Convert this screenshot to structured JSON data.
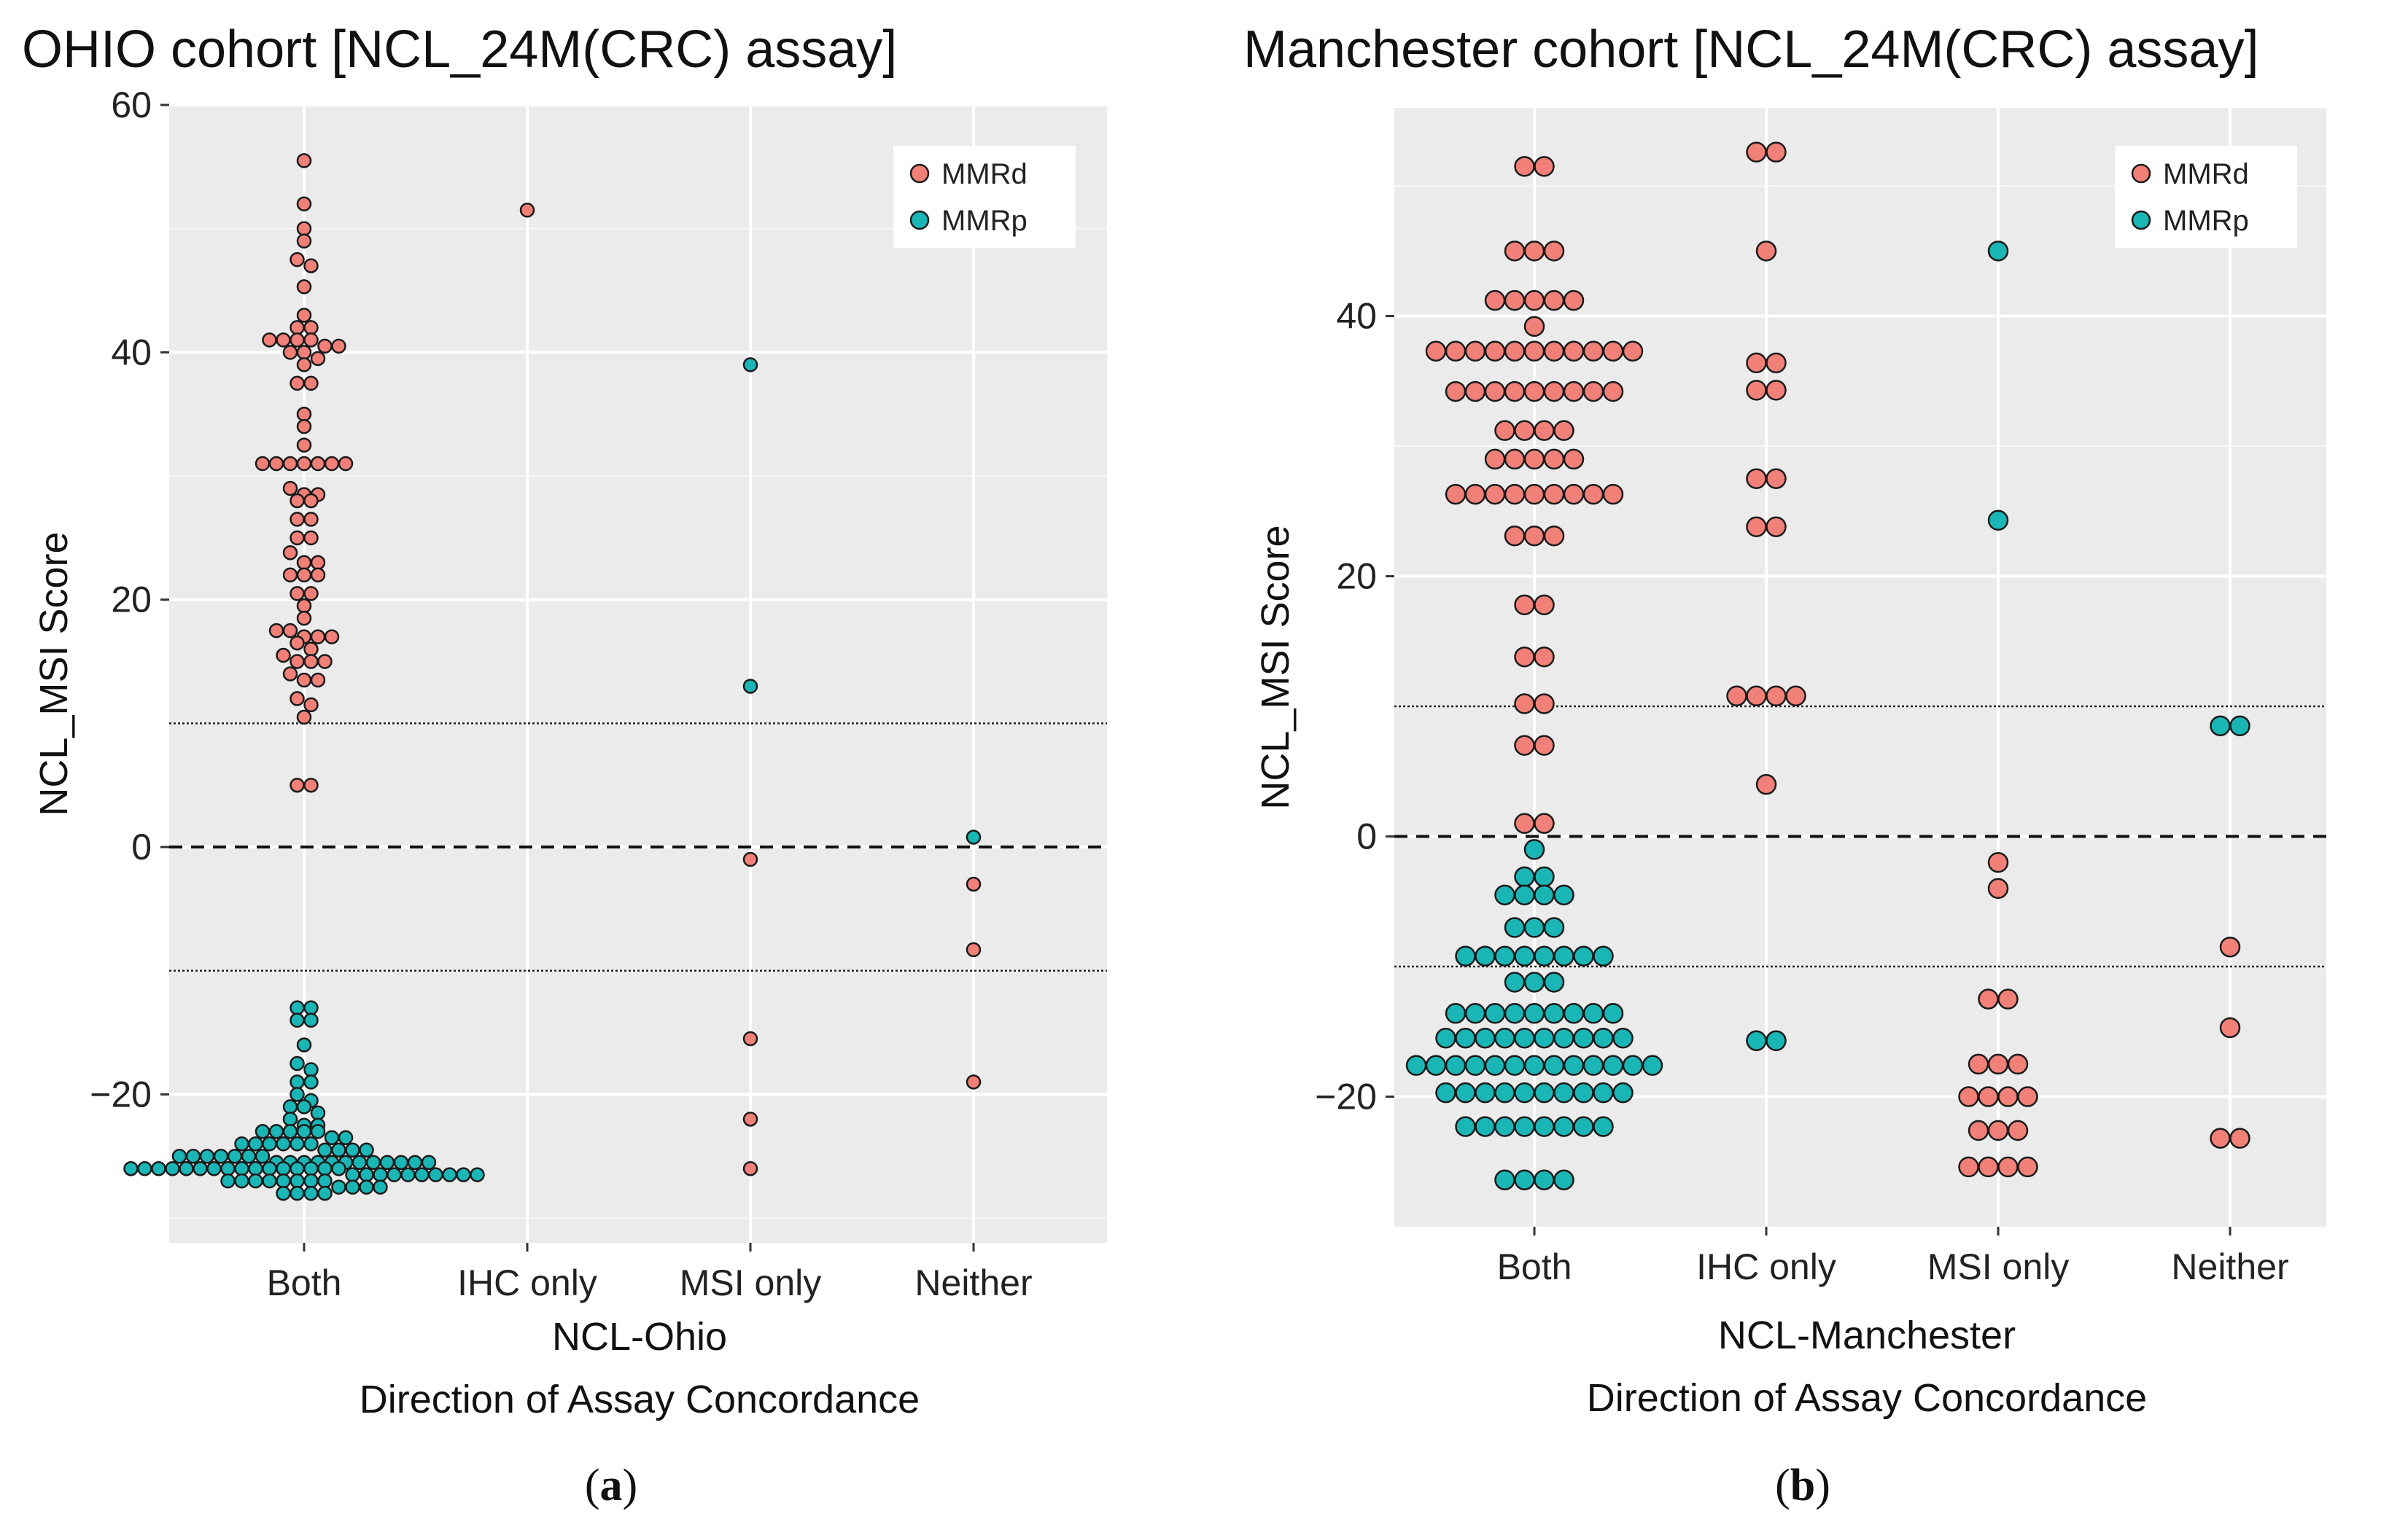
{
  "panels": [
    {
      "title": "OHIO cohort [NCL_24M(CRC) assay]",
      "caption_letter": "a",
      "chart_data": {
        "type": "scatter",
        "title": "OHIO cohort [NCL_24M(CRC) assay]",
        "xlabel": [
          "NCL-Ohio",
          "Direction of Assay Concordance"
        ],
        "ylabel": "NCL_MSI Score",
        "categories": [
          "Both",
          "IHC only",
          "MSI only",
          "Neither"
        ],
        "ylim": [
          -32,
          60
        ],
        "yticks": [
          -20,
          0,
          20,
          40,
          60
        ],
        "reference_lines": {
          "dashed": 0,
          "dotted": [
            10,
            -10
          ]
        },
        "legend": {
          "position": "top-right",
          "entries": [
            "MMRd",
            "MMRp"
          ]
        },
        "colors": {
          "MMRd": "#f08078",
          "MMRp": "#1ab5b5"
        },
        "grid": true,
        "series": [
          {
            "name": "MMRd",
            "points": {
              "Both": [
                55.5,
                52,
                50,
                49,
                47.5,
                47,
                45.3,
                43,
                42,
                42,
                41,
                41,
                41,
                41,
                40.5,
                40.5,
                40,
                40,
                39.5,
                39,
                37.5,
                37.5,
                35,
                34,
                32.5,
                31,
                31,
                31,
                31,
                31,
                31,
                31,
                29,
                28.5,
                28.5,
                28,
                28,
                26.5,
                26.5,
                25,
                25,
                23.8,
                23,
                23,
                22,
                22,
                22,
                20.5,
                20.5,
                19.5,
                18.5,
                17.5,
                17.5,
                17,
                17,
                17,
                16.5,
                16,
                15.5,
                15,
                15,
                15,
                14,
                13.5,
                13.5,
                12,
                11.5,
                10.5,
                5,
                5
              ],
              "IHC only": [
                51.5
              ],
              "MSI only": [
                -1,
                -15.5,
                -22,
                -26
              ],
              "Neither": [
                -3,
                -8.3,
                -19
              ]
            }
          },
          {
            "name": "MMRp",
            "points": {
              "Both": [
                -13,
                -13,
                -14,
                -14,
                -16,
                -17.5,
                -18,
                -19,
                -19,
                -20,
                -20.5,
                -21,
                -21,
                -21.5,
                -22,
                -22.5,
                -22.5,
                -23,
                -23,
                -23,
                -23,
                -23,
                -23.5,
                -23.5,
                -24,
                -24,
                -24,
                -24,
                -24,
                -24,
                -24.5,
                -24.5,
                -24.5,
                -24.5,
                -25,
                -25,
                -25,
                -25,
                -25,
                -25,
                -25,
                -25.5,
                -25.5,
                -25.5,
                -25.5,
                -25.5,
                -25.5,
                -25.5,
                -25.5,
                -25.5,
                -25.5,
                -25.5,
                -25.5,
                -26,
                -26,
                -26,
                -26,
                -26,
                -26,
                -26,
                -26,
                -26,
                -26,
                -26,
                -26,
                -26,
                -26,
                -26,
                -26,
                -26.5,
                -26.5,
                -26.5,
                -26.5,
                -26.5,
                -26.5,
                -26.5,
                -26.5,
                -26.5,
                -26.5,
                -27,
                -27,
                -27,
                -27,
                -27,
                -27,
                -27,
                -27,
                -27.5,
                -27.5,
                -27.5,
                -27.5,
                -28,
                -28,
                -28,
                -28
              ],
              "IHC only": [],
              "MSI only": [
                39,
                13
              ],
              "Neither": [
                0.8
              ]
            }
          }
        ]
      }
    },
    {
      "title": "Manchester cohort [NCL_24M(CRC) assay]",
      "caption_letter": "b",
      "chart_data": {
        "type": "scatter",
        "title": "Manchester cohort [NCL_24M(CRC) assay]",
        "xlabel": [
          "NCL-Manchester",
          "Direction of Assay Concordance"
        ],
        "ylabel": "NCL_MSI Score",
        "categories": [
          "Both",
          "IHC only",
          "MSI only",
          "Neither"
        ],
        "ylim": [
          -30,
          56
        ],
        "yticks": [
          -20,
          0,
          20,
          40
        ],
        "reference_lines": {
          "dashed": 0,
          "dotted": [
            10,
            -10
          ]
        },
        "legend": {
          "position": "top-right",
          "entries": [
            "MMRd",
            "MMRp"
          ]
        },
        "colors": {
          "MMRd": "#f08078",
          "MMRp": "#1ab5b5"
        },
        "grid": true,
        "series": [
          {
            "name": "MMRd",
            "points": {
              "Both": [
                51.5,
                51.5,
                45,
                45,
                45,
                41.2,
                41.2,
                41.2,
                41.2,
                41.2,
                39.2,
                37.3,
                37.3,
                37.3,
                37.3,
                37.3,
                37.3,
                37.3,
                37.3,
                37.3,
                37.3,
                37.3,
                34.2,
                34.2,
                34.2,
                34.2,
                34.2,
                34.2,
                34.2,
                34.2,
                34.2,
                31.2,
                31.2,
                31.2,
                31.2,
                29,
                29,
                29,
                29,
                29,
                26.3,
                26.3,
                26.3,
                26.3,
                26.3,
                26.3,
                26.3,
                26.3,
                26.3,
                23.1,
                23.1,
                23.1,
                17.8,
                17.8,
                13.8,
                13.8,
                10.2,
                10.2,
                7,
                7,
                1,
                1
              ],
              "IHC only": [
                52.6,
                52.6,
                45,
                36.4,
                36.4,
                34.3,
                34.3,
                27.5,
                27.5,
                23.8,
                23.8,
                10.8,
                10.8,
                10.8,
                10.8,
                4
              ],
              "MSI only": [
                -2,
                -4,
                -12.5,
                -12.5,
                -17.5,
                -17.5,
                -17.5,
                -20,
                -20,
                -20,
                -20,
                -22.6,
                -22.6,
                -22.6,
                -25.4,
                -25.4,
                -25.4,
                -25.4
              ],
              "Neither": [
                -8.5,
                -14.7,
                -23.2,
                -23.2
              ]
            }
          },
          {
            "name": "MMRp",
            "points": {
              "Both": [
                -1,
                -3.1,
                -3.1,
                -4.5,
                -4.5,
                -4.5,
                -4.5,
                -7,
                -7,
                -7,
                -9.2,
                -9.2,
                -9.2,
                -9.2,
                -9.2,
                -9.2,
                -9.2,
                -9.2,
                -11.2,
                -11.2,
                -11.2,
                -13.6,
                -13.6,
                -13.6,
                -13.6,
                -13.6,
                -13.6,
                -13.6,
                -13.6,
                -13.6,
                -15.5,
                -15.5,
                -15.5,
                -15.5,
                -15.5,
                -15.5,
                -15.5,
                -15.5,
                -15.5,
                -15.5,
                -17.6,
                -17.6,
                -17.6,
                -17.6,
                -17.6,
                -17.6,
                -17.6,
                -17.6,
                -17.6,
                -17.6,
                -17.6,
                -17.6,
                -17.6,
                -19.7,
                -19.7,
                -19.7,
                -19.7,
                -19.7,
                -19.7,
                -19.7,
                -19.7,
                -19.7,
                -19.7,
                -22.3,
                -22.3,
                -22.3,
                -22.3,
                -22.3,
                -22.3,
                -22.3,
                -22.3,
                -26.4,
                -26.4,
                -26.4,
                -26.4
              ],
              "IHC only": [
                -15.7,
                -15.7
              ],
              "MSI only": [
                45,
                24.3
              ],
              "Neither": [
                8.5,
                8.5
              ]
            }
          }
        ]
      }
    }
  ]
}
